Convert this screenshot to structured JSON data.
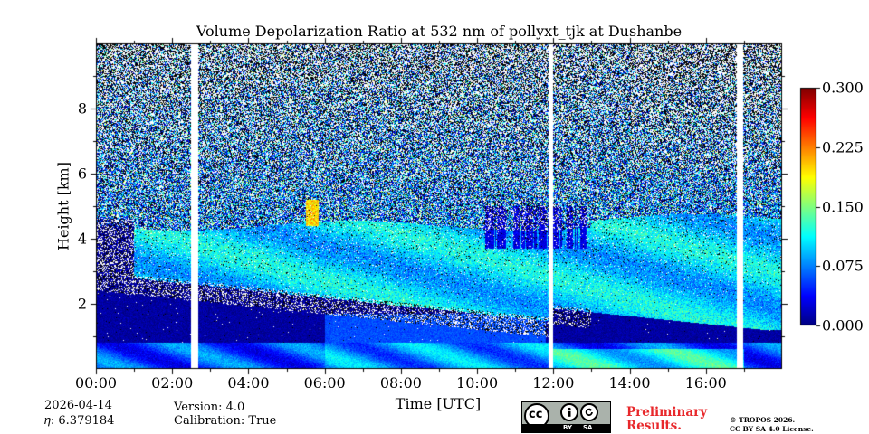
{
  "chart_data": {
    "type": "heatmap",
    "title": "Volume Depolarization Ratio at 532 nm of pollyxt_tjk at Dushanbe",
    "xlabel": "Time [UTC]",
    "ylabel": "Height [km]",
    "xlim_hours": [
      0,
      18
    ],
    "ylim_km": [
      0,
      10
    ],
    "xticks": [
      {
        "h": 0,
        "label": "00:00"
      },
      {
        "h": 2,
        "label": "02:00"
      },
      {
        "h": 4,
        "label": "04:00"
      },
      {
        "h": 6,
        "label": "06:00"
      },
      {
        "h": 8,
        "label": "08:00"
      },
      {
        "h": 10,
        "label": "10:00"
      },
      {
        "h": 12,
        "label": "12:00"
      },
      {
        "h": 14,
        "label": "14:00"
      },
      {
        "h": 16,
        "label": "16:00"
      }
    ],
    "yticks": [
      {
        "v": 2,
        "label": "2"
      },
      {
        "v": 4,
        "label": "4"
      },
      {
        "v": 6,
        "label": "6"
      },
      {
        "v": 8,
        "label": "8"
      }
    ],
    "colorbar": {
      "min": 0.0,
      "max": 0.3,
      "ticks": [
        {
          "v": 0.0,
          "label": "0.000"
        },
        {
          "v": 0.075,
          "label": "0.075"
        },
        {
          "v": 0.15,
          "label": "0.150"
        },
        {
          "v": 0.225,
          "label": "0.225"
        },
        {
          "v": 0.3,
          "label": "0.300"
        }
      ],
      "colormap": "jet"
    },
    "data_gaps_hours": [
      [
        2.5,
        2.68
      ],
      [
        11.88,
        12.0
      ],
      [
        16.82,
        16.97
      ]
    ],
    "features": [
      {
        "name": "surface layer",
        "height_km": [
          0,
          0.8
        ],
        "depol": 0.09
      },
      {
        "name": "low depolarization layer",
        "height_km": [
          0.8,
          3.0
        ],
        "depol": 0.01
      },
      {
        "name": "dust layer",
        "height_km": [
          3.0,
          4.6
        ],
        "depol": 0.11
      },
      {
        "name": "cloud patch",
        "time_h": [
          5.5,
          5.8
        ],
        "height_km": [
          4.4,
          5.2
        ],
        "depol": 0.2
      }
    ]
  },
  "meta": {
    "date": "2026-04-14",
    "eta": "𝜂: 6.379184",
    "version": "Version: 4.0",
    "calibration": "Calibration: True"
  },
  "badge": {
    "cc": "cc",
    "by": "BY",
    "sa": "SA"
  },
  "preliminary": {
    "line1": "Preliminary",
    "line2": "Results."
  },
  "copyright": {
    "line1": "© TROPOS 2026.",
    "line2": "CC BY SA 4.0 License."
  },
  "colors": {
    "preliminary": "#e8282b"
  }
}
